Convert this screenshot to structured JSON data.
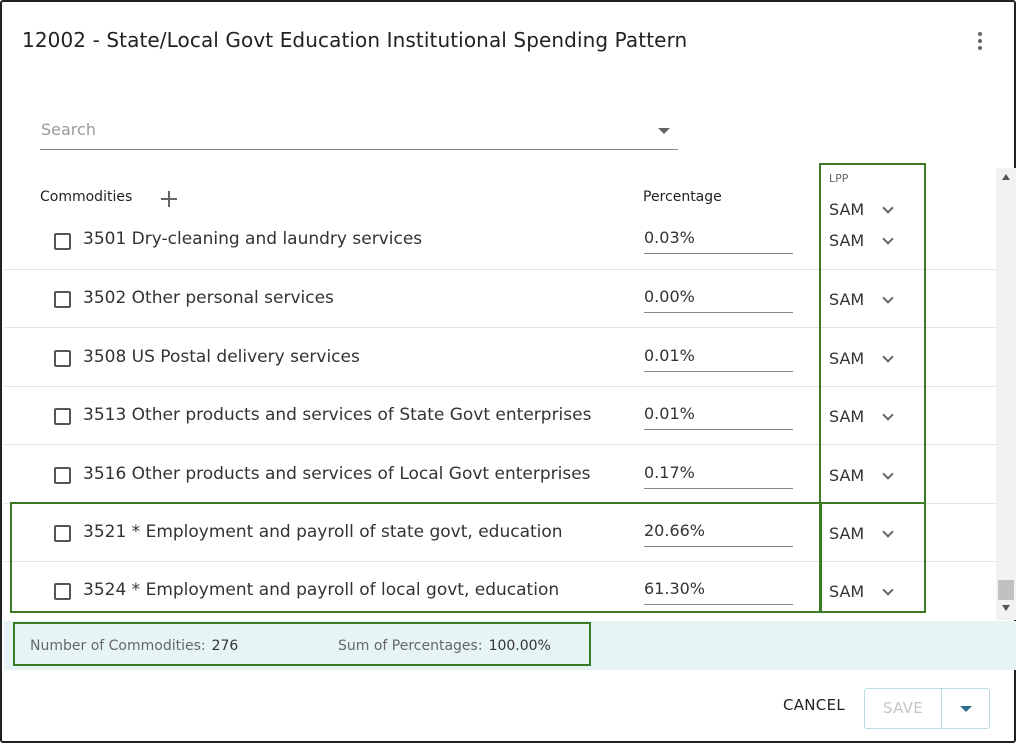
{
  "dialog": {
    "title": "12002 - State/Local Govt Education Institutional Spending Pattern"
  },
  "search": {
    "placeholder": "Search",
    "value": ""
  },
  "columns": {
    "commodities": "Commodities",
    "percentage": "Percentage",
    "lpp": "LPP",
    "lpp_header_value": "SAM"
  },
  "rows": [
    {
      "name": "3501 Dry-cleaning and laundry services",
      "percentage": "0.03%",
      "lpp": "SAM"
    },
    {
      "name": "3502 Other personal services",
      "percentage": "0.00%",
      "lpp": "SAM"
    },
    {
      "name": "3508 US Postal delivery services",
      "percentage": "0.01%",
      "lpp": "SAM"
    },
    {
      "name": "3513 Other products and services of State Govt enterprises",
      "percentage": "0.01%",
      "lpp": "SAM"
    },
    {
      "name": "3516 Other products and services of Local Govt enterprises",
      "percentage": "0.17%",
      "lpp": "SAM"
    },
    {
      "name": "3521 * Employment and payroll of state govt, education",
      "percentage": "20.66%",
      "lpp": "SAM"
    },
    {
      "name": "3524 * Employment and payroll of local govt, education",
      "percentage": "61.30%",
      "lpp": "SAM"
    }
  ],
  "footer": {
    "count_label": "Number of Commodities:",
    "count_value": "276",
    "sum_label": "Sum of Percentages:",
    "sum_value": "100.00%"
  },
  "actions": {
    "cancel": "CANCEL",
    "save": "SAVE"
  },
  "icons": {
    "more": "more-vert-icon",
    "add": "plus-icon",
    "dropdown": "chevron-down-icon"
  },
  "colors": {
    "highlight": "#3c7a23",
    "footer_bg": "#e7f4f6",
    "save_caret": "#2b6f8f"
  }
}
